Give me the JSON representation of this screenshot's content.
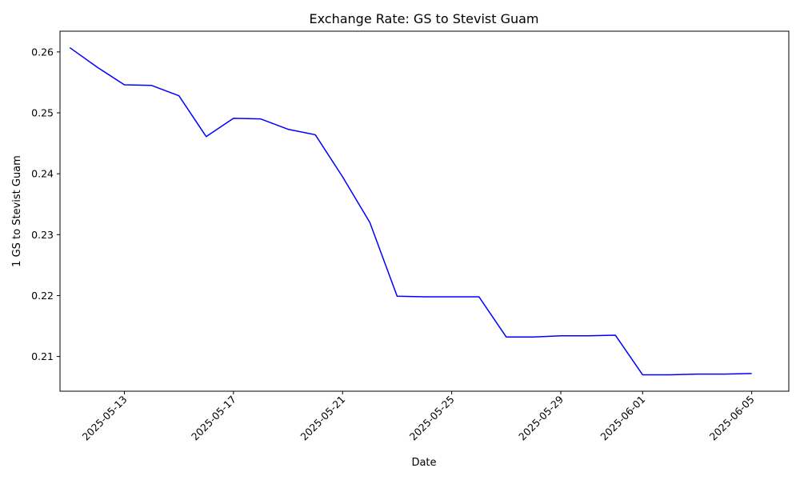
{
  "chart_data": {
    "type": "line",
    "title": "Exchange Rate: GS to Stevist Guam",
    "xlabel": "Date",
    "ylabel": "1 GS to Stevist Guam",
    "x_ticks": [
      "2025-05-13",
      "2025-05-17",
      "2025-05-21",
      "2025-05-25",
      "2025-05-29",
      "2025-06-01",
      "2025-06-05"
    ],
    "y_ticks": [
      "0.21",
      "0.22",
      "0.23",
      "0.24",
      "0.25",
      "0.26"
    ],
    "xlim": [
      "2025-05-10",
      "2025-06-06"
    ],
    "ylim": [
      0.2043,
      0.2634
    ],
    "grid": false,
    "legend": "none",
    "series": [
      {
        "color": "#0000ff",
        "x": [
          "2025-05-11",
          "2025-05-12",
          "2025-05-13",
          "2025-05-14",
          "2025-05-15",
          "2025-05-16",
          "2025-05-17",
          "2025-05-18",
          "2025-05-19",
          "2025-05-20",
          "2025-05-21",
          "2025-05-22",
          "2025-05-23",
          "2025-05-24",
          "2025-05-25",
          "2025-05-26",
          "2025-05-27",
          "2025-05-28",
          "2025-05-29",
          "2025-05-30",
          "2025-05-31",
          "2025-06-01",
          "2025-06-02",
          "2025-06-03",
          "2025-06-04",
          "2025-06-05"
        ],
        "values": [
          0.2607,
          0.2575,
          0.2546,
          0.2545,
          0.2528,
          0.2461,
          0.2491,
          0.249,
          0.2473,
          0.2464,
          0.2395,
          0.232,
          0.2199,
          0.2198,
          0.2198,
          0.2198,
          0.2132,
          0.2132,
          0.2134,
          0.2134,
          0.2135,
          0.207,
          0.207,
          0.2071,
          0.2071,
          0.2072
        ]
      }
    ]
  }
}
